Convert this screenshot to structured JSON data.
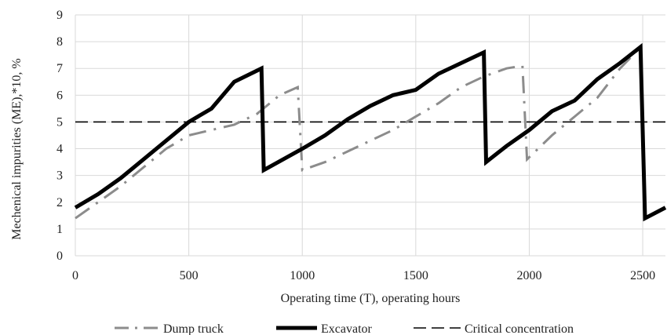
{
  "chart_data": {
    "type": "line",
    "xlabel": "Operating time (T), operating hours",
    "ylabel": "Mechenical impurities (ME),*10, %",
    "xlim": [
      0,
      2600
    ],
    "ylim": [
      0,
      9
    ],
    "x_ticks": [
      "0",
      "500",
      "1000",
      "1500",
      "2000",
      "2500"
    ],
    "x_tick_values": [
      0,
      500,
      1000,
      1500,
      2000,
      2500
    ],
    "y_ticks": [
      "0",
      "1",
      "2",
      "3",
      "4",
      "5",
      "6",
      "7",
      "8",
      "9"
    ],
    "y_tick_values": [
      0,
      1,
      2,
      3,
      4,
      5,
      6,
      7,
      8,
      9
    ],
    "grid": true,
    "legend_position": "bottom",
    "series": [
      {
        "name": "Dump truck",
        "color": "#8c8c8c",
        "style": "dash-dot",
        "points": [
          [
            0,
            1.4
          ],
          [
            100,
            2.0
          ],
          [
            200,
            2.6
          ],
          [
            300,
            3.3
          ],
          [
            400,
            4.0
          ],
          [
            500,
            4.5
          ],
          [
            600,
            4.7
          ],
          [
            700,
            4.9
          ],
          [
            800,
            5.3
          ],
          [
            900,
            6.0
          ],
          [
            980,
            6.3
          ],
          [
            1000,
            3.2
          ],
          [
            1100,
            3.5
          ],
          [
            1200,
            3.9
          ],
          [
            1300,
            4.3
          ],
          [
            1400,
            4.7
          ],
          [
            1500,
            5.2
          ],
          [
            1600,
            5.7
          ],
          [
            1700,
            6.3
          ],
          [
            1800,
            6.7
          ],
          [
            1900,
            7.0
          ],
          [
            1970,
            7.1
          ],
          [
            1990,
            3.6
          ],
          [
            2100,
            4.5
          ],
          [
            2200,
            5.2
          ],
          [
            2300,
            5.9
          ],
          [
            2400,
            7.0
          ],
          [
            2480,
            7.7
          ]
        ]
      },
      {
        "name": "Excavator",
        "color": "#000000",
        "style": "solid",
        "points": [
          [
            0,
            1.8
          ],
          [
            100,
            2.3
          ],
          [
            200,
            2.9
          ],
          [
            300,
            3.6
          ],
          [
            400,
            4.3
          ],
          [
            500,
            5.0
          ],
          [
            600,
            5.5
          ],
          [
            700,
            6.5
          ],
          [
            820,
            7.0
          ],
          [
            830,
            3.2
          ],
          [
            1000,
            4.0
          ],
          [
            1100,
            4.5
          ],
          [
            1200,
            5.1
          ],
          [
            1300,
            5.6
          ],
          [
            1400,
            6.0
          ],
          [
            1500,
            6.2
          ],
          [
            1600,
            6.8
          ],
          [
            1700,
            7.2
          ],
          [
            1800,
            7.6
          ],
          [
            1810,
            3.5
          ],
          [
            1900,
            4.1
          ],
          [
            2000,
            4.7
          ],
          [
            2100,
            5.4
          ],
          [
            2200,
            5.8
          ],
          [
            2300,
            6.6
          ],
          [
            2400,
            7.2
          ],
          [
            2490,
            7.8
          ],
          [
            2510,
            1.4
          ],
          [
            2600,
            1.8
          ]
        ]
      },
      {
        "name": "Critical concentration",
        "color": "#000000",
        "style": "long-dash",
        "points": [
          [
            0,
            5.0
          ],
          [
            2600,
            5.0
          ]
        ]
      }
    ]
  }
}
